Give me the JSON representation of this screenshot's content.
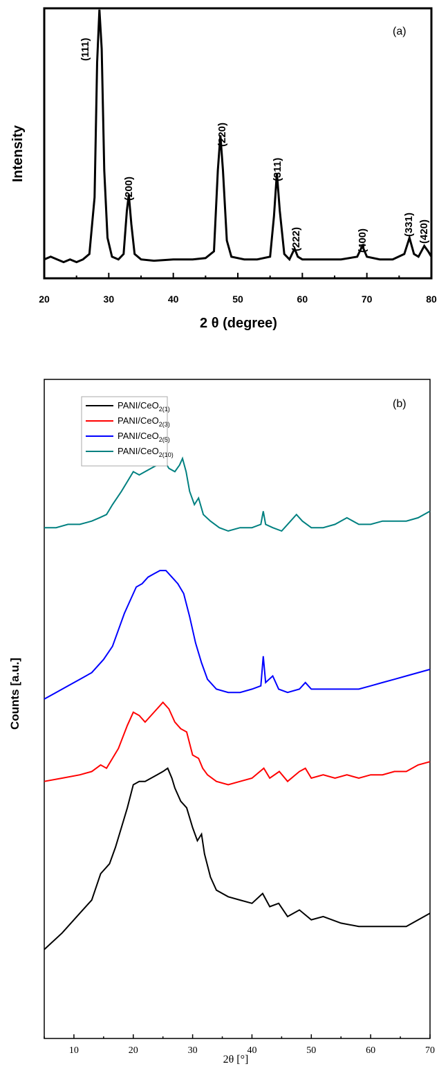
{
  "chart_data": [
    {
      "panel_label": "(a)",
      "type": "line",
      "xlabel": "2 θ (degree)",
      "ylabel": "Intensity",
      "xlim": [
        20,
        80
      ],
      "x_ticks": [
        "20",
        "30",
        "40",
        "50",
        "60",
        "70",
        "80"
      ],
      "y_ticks_labeled": false,
      "grid": false,
      "series": [
        {
          "color": "#000000",
          "points": [
            [
              20,
              0.07
            ],
            [
              21,
              0.08
            ],
            [
              22,
              0.07
            ],
            [
              23,
              0.06
            ],
            [
              24,
              0.07
            ],
            [
              25,
              0.06
            ],
            [
              26,
              0.07
            ],
            [
              27,
              0.09
            ],
            [
              27.8,
              0.3
            ],
            [
              28.2,
              0.8
            ],
            [
              28.55,
              0.995
            ],
            [
              28.9,
              0.85
            ],
            [
              29.3,
              0.4
            ],
            [
              29.8,
              0.15
            ],
            [
              30.5,
              0.08
            ],
            [
              31.5,
              0.07
            ],
            [
              32.3,
              0.09
            ],
            [
              32.8,
              0.25
            ],
            [
              33.1,
              0.31
            ],
            [
              33.5,
              0.2
            ],
            [
              34,
              0.09
            ],
            [
              35,
              0.07
            ],
            [
              37,
              0.065
            ],
            [
              40,
              0.07
            ],
            [
              43,
              0.07
            ],
            [
              45,
              0.075
            ],
            [
              46.3,
              0.1
            ],
            [
              46.9,
              0.4
            ],
            [
              47.3,
              0.53
            ],
            [
              47.7,
              0.4
            ],
            [
              48.3,
              0.14
            ],
            [
              49,
              0.08
            ],
            [
              51,
              0.07
            ],
            [
              53,
              0.07
            ],
            [
              55,
              0.08
            ],
            [
              55.6,
              0.23
            ],
            [
              56.05,
              0.39
            ],
            [
              56.5,
              0.25
            ],
            [
              57.2,
              0.09
            ],
            [
              58,
              0.07
            ],
            [
              58.8,
              0.11
            ],
            [
              59.3,
              0.08
            ],
            [
              60,
              0.07
            ],
            [
              63,
              0.07
            ],
            [
              66,
              0.07
            ],
            [
              68.5,
              0.08
            ],
            [
              69.3,
              0.12
            ],
            [
              70,
              0.08
            ],
            [
              72,
              0.07
            ],
            [
              74,
              0.07
            ],
            [
              75.8,
              0.09
            ],
            [
              76.6,
              0.15
            ],
            [
              77.3,
              0.09
            ],
            [
              78,
              0.08
            ],
            [
              78.9,
              0.12
            ],
            [
              79.5,
              0.1
            ],
            [
              80,
              0.08
            ]
          ]
        }
      ],
      "annotations": [
        {
          "text": "(111)",
          "x": 28.6
        },
        {
          "text": "(200)",
          "x": 33.1
        },
        {
          "text": "(220)",
          "x": 47.3
        },
        {
          "text": "(311)",
          "x": 56.1
        },
        {
          "text": "(222)",
          "x": 59.0
        },
        {
          "text": "(400)",
          "x": 69.2
        },
        {
          "text": "(331)",
          "x": 76.6
        },
        {
          "text": "(420)",
          "x": 79.0
        }
      ]
    },
    {
      "panel_label": "(b)",
      "type": "line",
      "xlabel": "2θ [°]",
      "ylabel": "Counts [a.u.]",
      "xlim": [
        5,
        70
      ],
      "x_ticks": [
        "10",
        "20",
        "30",
        "40",
        "50",
        "60",
        "70"
      ],
      "y_ticks_labeled": false,
      "grid": false,
      "legend_position": "top-left",
      "series": [
        {
          "name": "PANI/CeO",
          "name_sub": "2(1)",
          "color": "#000000",
          "points": [
            [
              5,
              0.135
            ],
            [
              8,
              0.16
            ],
            [
              11,
              0.19
            ],
            [
              13,
              0.21
            ],
            [
              14.5,
              0.25
            ],
            [
              16,
              0.265
            ],
            [
              17,
              0.29
            ],
            [
              18,
              0.32
            ],
            [
              19,
              0.35
            ],
            [
              20,
              0.385
            ],
            [
              21,
              0.39
            ],
            [
              22,
              0.39
            ],
            [
              23,
              0.395
            ],
            [
              24,
              0.4
            ],
            [
              25,
              0.405
            ],
            [
              25.8,
              0.41
            ],
            [
              26.5,
              0.395
            ],
            [
              27,
              0.38
            ],
            [
              28,
              0.36
            ],
            [
              29,
              0.35
            ],
            [
              30,
              0.32
            ],
            [
              30.8,
              0.3
            ],
            [
              31.5,
              0.31
            ],
            [
              32,
              0.28
            ],
            [
              33,
              0.245
            ],
            [
              34,
              0.225
            ],
            [
              36,
              0.215
            ],
            [
              38,
              0.21
            ],
            [
              40,
              0.205
            ],
            [
              41.8,
              0.22
            ],
            [
              43,
              0.2
            ],
            [
              44.5,
              0.205
            ],
            [
              46,
              0.185
            ],
            [
              48,
              0.195
            ],
            [
              50,
              0.18
            ],
            [
              52,
              0.185
            ],
            [
              55,
              0.175
            ],
            [
              58,
              0.17
            ],
            [
              62,
              0.17
            ],
            [
              66,
              0.17
            ],
            [
              70,
              0.19
            ]
          ]
        },
        {
          "name": "PANI/CeO",
          "name_sub": "2(3)",
          "color": "#ff0000",
          "points": [
            [
              5,
              0.39
            ],
            [
              8,
              0.395
            ],
            [
              11,
              0.4
            ],
            [
              13,
              0.405
            ],
            [
              14.5,
              0.415
            ],
            [
              15.5,
              0.41
            ],
            [
              16.5,
              0.425
            ],
            [
              17.5,
              0.44
            ],
            [
              19,
              0.475
            ],
            [
              20,
              0.495
            ],
            [
              21,
              0.49
            ],
            [
              22,
              0.48
            ],
            [
              23,
              0.49
            ],
            [
              24,
              0.5
            ],
            [
              25,
              0.51
            ],
            [
              26,
              0.5
            ],
            [
              27,
              0.48
            ],
            [
              28,
              0.47
            ],
            [
              29,
              0.465
            ],
            [
              30,
              0.43
            ],
            [
              31,
              0.425
            ],
            [
              31.7,
              0.41
            ],
            [
              32.5,
              0.4
            ],
            [
              34,
              0.39
            ],
            [
              36,
              0.385
            ],
            [
              38,
              0.39
            ],
            [
              40,
              0.395
            ],
            [
              42,
              0.41
            ],
            [
              43,
              0.395
            ],
            [
              44.6,
              0.405
            ],
            [
              46,
              0.39
            ],
            [
              48,
              0.405
            ],
            [
              49,
              0.41
            ],
            [
              50,
              0.395
            ],
            [
              52,
              0.4
            ],
            [
              54,
              0.395
            ],
            [
              56,
              0.4
            ],
            [
              58,
              0.395
            ],
            [
              60,
              0.4
            ],
            [
              62,
              0.4
            ],
            [
              64,
              0.405
            ],
            [
              66,
              0.405
            ],
            [
              68,
              0.415
            ],
            [
              70,
              0.42
            ]
          ]
        },
        {
          "name": "PANI/CeO",
          "name_sub": "2(5)",
          "color": "#0000ff",
          "points": [
            [
              5,
              0.515
            ],
            [
              7,
              0.525
            ],
            [
              9,
              0.535
            ],
            [
              11,
              0.545
            ],
            [
              13,
              0.555
            ],
            [
              15,
              0.575
            ],
            [
              16.5,
              0.595
            ],
            [
              17.5,
              0.62
            ],
            [
              18.5,
              0.645
            ],
            [
              19.5,
              0.665
            ],
            [
              20.5,
              0.685
            ],
            [
              21.5,
              0.69
            ],
            [
              22.5,
              0.7
            ],
            [
              23.5,
              0.705
            ],
            [
              24.5,
              0.71
            ],
            [
              25.5,
              0.71
            ],
            [
              26.5,
              0.7
            ],
            [
              27.5,
              0.69
            ],
            [
              28.5,
              0.675
            ],
            [
              29.5,
              0.64
            ],
            [
              30.5,
              0.6
            ],
            [
              31.5,
              0.57
            ],
            [
              32.5,
              0.545
            ],
            [
              34,
              0.53
            ],
            [
              36,
              0.525
            ],
            [
              38,
              0.525
            ],
            [
              40,
              0.53
            ],
            [
              41.5,
              0.535
            ],
            [
              41.9,
              0.58
            ],
            [
              42.3,
              0.54
            ],
            [
              43.5,
              0.55
            ],
            [
              44.5,
              0.53
            ],
            [
              46,
              0.525
            ],
            [
              48,
              0.53
            ],
            [
              49,
              0.54
            ],
            [
              50,
              0.53
            ],
            [
              52,
              0.53
            ],
            [
              54,
              0.53
            ],
            [
              56,
              0.53
            ],
            [
              58,
              0.53
            ],
            [
              60,
              0.535
            ],
            [
              62,
              0.54
            ],
            [
              64,
              0.545
            ],
            [
              66,
              0.55
            ],
            [
              68,
              0.555
            ],
            [
              70,
              0.56
            ]
          ]
        },
        {
          "name": "PANI/CeO",
          "name_sub": "2(10)",
          "color": "#008080",
          "points": [
            [
              5,
              0.775
            ],
            [
              7,
              0.775
            ],
            [
              9,
              0.78
            ],
            [
              11,
              0.78
            ],
            [
              13,
              0.785
            ],
            [
              14.3,
              0.79
            ],
            [
              15.5,
              0.795
            ],
            [
              16.5,
              0.81
            ],
            [
              18,
              0.83
            ],
            [
              19,
              0.845
            ],
            [
              20,
              0.86
            ],
            [
              21,
              0.855
            ],
            [
              22,
              0.86
            ],
            [
              23,
              0.865
            ],
            [
              24,
              0.87
            ],
            [
              25,
              0.88
            ],
            [
              26,
              0.865
            ],
            [
              27,
              0.86
            ],
            [
              27.8,
              0.87
            ],
            [
              28.3,
              0.88
            ],
            [
              28.9,
              0.86
            ],
            [
              29.5,
              0.83
            ],
            [
              30.3,
              0.81
            ],
            [
              31,
              0.82
            ],
            [
              31.8,
              0.795
            ],
            [
              33,
              0.785
            ],
            [
              34.5,
              0.775
            ],
            [
              36,
              0.77
            ],
            [
              38,
              0.775
            ],
            [
              40,
              0.775
            ],
            [
              41.5,
              0.78
            ],
            [
              41.9,
              0.8
            ],
            [
              42.3,
              0.78
            ],
            [
              43.5,
              0.775
            ],
            [
              45,
              0.77
            ],
            [
              46.5,
              0.785
            ],
            [
              47.5,
              0.795
            ],
            [
              48.5,
              0.785
            ],
            [
              50,
              0.775
            ],
            [
              52,
              0.775
            ],
            [
              54,
              0.78
            ],
            [
              56,
              0.79
            ],
            [
              58,
              0.78
            ],
            [
              60,
              0.78
            ],
            [
              62,
              0.785
            ],
            [
              64,
              0.785
            ],
            [
              66,
              0.785
            ],
            [
              68,
              0.79
            ],
            [
              70,
              0.8
            ]
          ]
        }
      ]
    }
  ]
}
